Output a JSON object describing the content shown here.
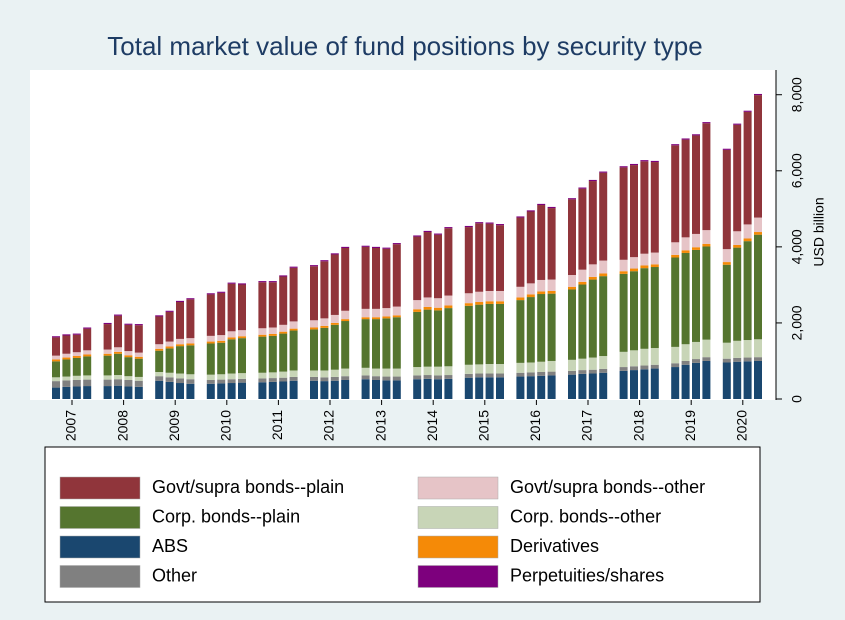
{
  "chart_data": {
    "type": "stacked_bar",
    "title": "Total market value of fund positions by security type",
    "y_label": "USD billion",
    "categories": [
      "2007",
      null,
      null,
      null,
      "2008",
      null,
      null,
      null,
      "2009",
      null,
      null,
      null,
      "2010",
      null,
      null,
      null,
      "2011",
      null,
      null,
      null,
      "2012",
      null,
      null,
      null,
      "2013",
      null,
      null,
      null,
      "2014",
      null,
      null,
      null,
      "2015",
      null,
      null,
      null,
      "2016",
      null,
      null,
      null,
      "2017",
      null,
      null,
      null,
      "2018",
      null,
      null,
      null,
      "2019",
      null,
      null,
      null,
      "2020",
      null,
      null,
      null
    ],
    "ylim": [
      0,
      8650
    ],
    "yticks": [
      0,
      {
        "value": 2000,
        "label": "2,000"
      },
      {
        "value": 4000,
        "label": "4,000"
      },
      {
        "value": 6000,
        "label": "6,000"
      },
      {
        "value": 8000,
        "label": "8,000"
      }
    ],
    "grid": false,
    "series": [
      {
        "name": "Govt/supra bonds--plain",
        "color": "#90353b",
        "values": [
          480,
          480,
          460,
          570,
          670,
          830,
          690,
          720,
          730,
          780,
          970,
          1020,
          1090,
          1110,
          1250,
          1200,
          1210,
          1190,
          1270,
          1410,
          1420,
          1500,
          1590,
          1650,
          1630,
          1600,
          1560,
          1640,
          1670,
          1720,
          1670,
          1770,
          1740,
          1800,
          1770,
          1730,
          1820,
          1890,
          1970,
          1880,
          1990,
          2130,
          2190,
          2310,
          2430,
          2420,
          2430,
          2380,
          2550,
          2570,
          2590,
          2810,
          2610,
          2800,
          2960,
          3220
        ]
      },
      {
        "name": "Govt/supra bonds--other",
        "color": "#e6c4c7",
        "values": [
          100,
          100,
          100,
          110,
          110,
          120,
          110,
          110,
          120,
          130,
          140,
          140,
          150,
          150,
          160,
          160,
          170,
          170,
          180,
          190,
          190,
          200,
          210,
          220,
          220,
          220,
          220,
          230,
          240,
          250,
          250,
          260,
          260,
          270,
          270,
          270,
          280,
          290,
          300,
          300,
          310,
          320,
          330,
          340,
          300,
          300,
          310,
          310,
          330,
          340,
          350,
          360,
          340,
          360,
          370,
          380
        ]
      },
      {
        "name": "Corp. bonds--plain",
        "color": "#55752f",
        "values": [
          420,
          450,
          470,
          500,
          520,
          560,
          500,
          480,
          560,
          640,
          720,
          760,
          820,
          830,
          900,
          920,
          950,
          960,
          1000,
          1050,
          1080,
          1120,
          1180,
          1250,
          1280,
          1300,
          1320,
          1350,
          1450,
          1500,
          1480,
          1530,
          1550,
          1570,
          1580,
          1580,
          1650,
          1720,
          1780,
          1770,
          1850,
          1950,
          2050,
          2100,
          2050,
          2080,
          2120,
          2130,
          2350,
          2400,
          2420,
          2450,
          2050,
          2450,
          2600,
          2750
        ]
      },
      {
        "name": "Corp. bonds--other",
        "color": "#c8d5b7",
        "values": [
          100,
          100,
          110,
          110,
          110,
          110,
          100,
          100,
          110,
          120,
          130,
          130,
          140,
          140,
          150,
          150,
          150,
          150,
          160,
          170,
          170,
          180,
          190,
          200,
          200,
          200,
          210,
          210,
          220,
          220,
          230,
          230,
          240,
          240,
          250,
          250,
          260,
          260,
          270,
          280,
          290,
          300,
          320,
          340,
          400,
          420,
          440,
          440,
          430,
          440,
          450,
          460,
          420,
          450,
          460,
          470
        ]
      },
      {
        "name": "ABS",
        "color": "#1a476f",
        "values": [
          300,
          320,
          330,
          340,
          340,
          350,
          330,
          320,
          480,
          450,
          420,
          400,
          400,
          410,
          420,
          430,
          440,
          450,
          460,
          480,
          480,
          470,
          480,
          500,
          520,
          500,
          490,
          490,
          520,
          530,
          520,
          530,
          560,
          570,
          570,
          570,
          590,
          600,
          610,
          620,
          640,
          660,
          670,
          690,
          740,
          760,
          780,
          800,
          840,
          900,
          950,
          1000,
          960,
          980,
          990,
          1000
        ]
      },
      {
        "name": "Derivatives",
        "color": "#f58a07",
        "values": [
          50,
          50,
          50,
          50,
          50,
          50,
          50,
          50,
          50,
          50,
          50,
          50,
          50,
          50,
          50,
          50,
          50,
          50,
          50,
          50,
          50,
          50,
          50,
          50,
          50,
          50,
          50,
          50,
          70,
          70,
          70,
          70,
          70,
          70,
          70,
          70,
          70,
          70,
          70,
          70,
          70,
          70,
          70,
          70,
          70,
          70,
          70,
          70,
          70,
          70,
          70,
          70,
          70,
          70,
          70,
          70
        ]
      },
      {
        "name": "Other",
        "color": "#808080",
        "values": [
          170,
          170,
          170,
          170,
          170,
          170,
          170,
          160,
          120,
          120,
          120,
          120,
          100,
          100,
          100,
          100,
          100,
          100,
          100,
          100,
          100,
          100,
          100,
          100,
          100,
          100,
          100,
          100,
          100,
          100,
          100,
          100,
          100,
          100,
          100,
          100,
          100,
          100,
          100,
          100,
          100,
          100,
          100,
          100,
          100,
          100,
          100,
          100,
          100,
          100,
          100,
          100,
          100,
          100,
          100,
          100
        ]
      },
      {
        "name": "Perpetuities/shares",
        "color": "#7d007d",
        "values": [
          30,
          30,
          30,
          30,
          30,
          30,
          30,
          30,
          30,
          30,
          30,
          30,
          30,
          30,
          30,
          30,
          30,
          30,
          30,
          30,
          30,
          30,
          30,
          30,
          30,
          30,
          30,
          30,
          30,
          30,
          30,
          30,
          30,
          30,
          30,
          30,
          30,
          30,
          30,
          30,
          30,
          30,
          30,
          30,
          30,
          30,
          30,
          30,
          30,
          30,
          30,
          30,
          30,
          30,
          30,
          30
        ]
      }
    ]
  }
}
